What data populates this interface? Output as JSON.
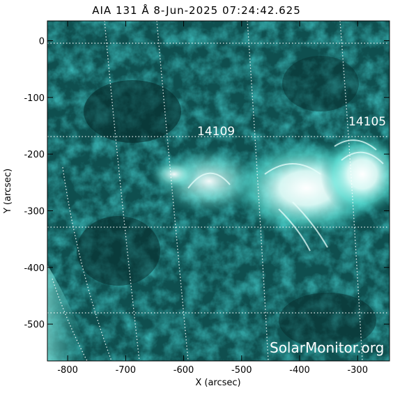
{
  "header": {
    "title": "AIA 131 Å  8-Jun-2025 07:24:42.625"
  },
  "axes": {
    "xlabel": "X (arcsec)",
    "ylabel": "Y (arcsec)",
    "xticks": [
      "-800",
      "-700",
      "-600",
      "-500",
      "-400",
      "-300"
    ],
    "yticks": [
      "0",
      "-100",
      "-200",
      "-300",
      "-400",
      "-500"
    ],
    "xlim": [
      -835,
      -245
    ],
    "ylim": [
      -565,
      35
    ]
  },
  "regions": [
    {
      "label": "14109",
      "x": -560,
      "y": -165
    },
    {
      "label": "14105",
      "x": -300,
      "y": -150
    }
  ],
  "watermark": "SolarMonitor.org",
  "colors": {
    "hot": "#ffffff",
    "mid": "#2fd2c8",
    "dark": "#0a3a3a",
    "bg": "#ffffff"
  }
}
